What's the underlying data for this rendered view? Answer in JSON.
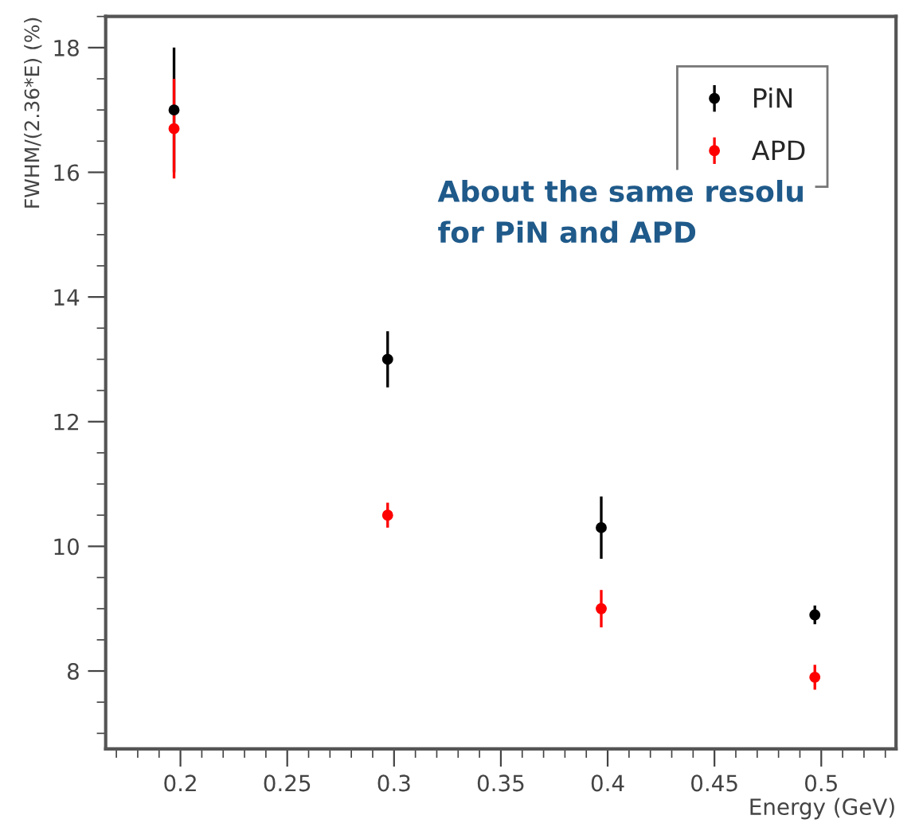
{
  "chart_data": {
    "type": "scatter",
    "xlabel": "Energy (GeV)",
    "ylabel": "FWHM/(2.36*E) (%)",
    "x": [
      0.197,
      0.297,
      0.397,
      0.497
    ],
    "series": [
      {
        "name": "PiN",
        "color": "#000000",
        "values": [
          17.0,
          13.0,
          10.3,
          8.9
        ],
        "errors": [
          1.0,
          0.45,
          0.5,
          0.15
        ]
      },
      {
        "name": "APD",
        "color": "#ff0000",
        "values": [
          16.7,
          10.5,
          9.0,
          7.9
        ],
        "errors": [
          0.8,
          0.2,
          0.3,
          0.2
        ]
      }
    ],
    "xlim": [
      0.165,
      0.535
    ],
    "xticks": [
      0.2,
      0.25,
      0.3,
      0.35,
      0.4,
      0.45,
      0.5
    ],
    "ylim": [
      6.75,
      18.5
    ],
    "yticks": [
      8,
      10,
      12,
      14,
      16,
      18
    ],
    "annotations": [
      "About the same resolu\nfor PiN and APD"
    ],
    "legend": "top right",
    "marker": "circle",
    "grid": false
  }
}
